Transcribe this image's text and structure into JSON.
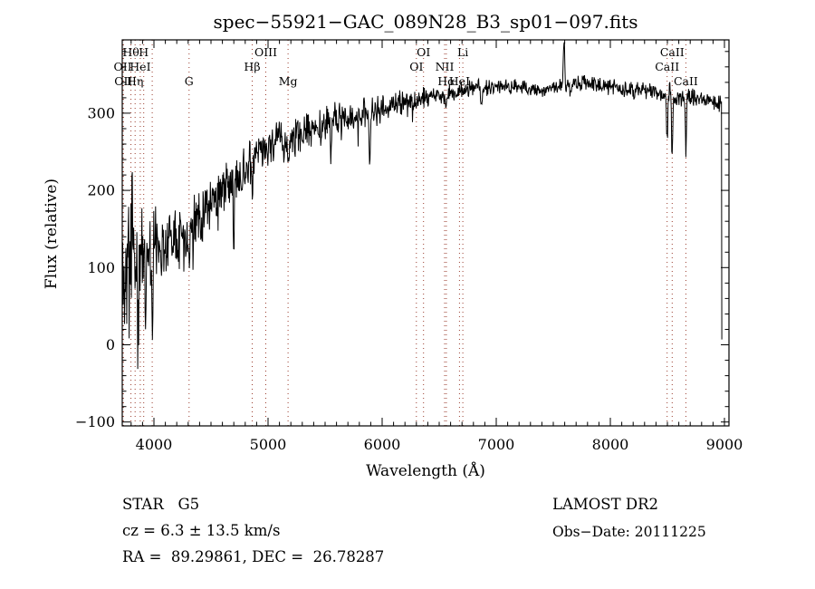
{
  "title": "spec−55921−GAC_089N28_B3_sp01−097.fits",
  "footer": {
    "class_label": "STAR   G5",
    "cz": "cz = 6.3 ± 13.5 km/s",
    "radec": "RA =  89.29861, DEC =  26.78287",
    "survey": "LAMOST DR2",
    "obs_date": "Obs−Date: 20111225"
  },
  "chart_data": {
    "type": "line",
    "title": "spec−55921−GAC_089N28_B3_sp01−097.fits",
    "xlabel": "Wavelength (Å)",
    "ylabel": "Flux (relative)",
    "xlim": [
      3722,
      9040
    ],
    "ylim": [
      -105,
      395
    ],
    "xticks": [
      4000,
      5000,
      6000,
      7000,
      8000,
      9000
    ],
    "yticks": [
      -100,
      0,
      100,
      200,
      300
    ],
    "x_minor_step": 100,
    "y_minor_step": 20,
    "grid": false,
    "marker_color": "#9a3b2c",
    "trace_color": "#000000",
    "spectral_lines": [
      {
        "wavelength": 3727,
        "label": "OII",
        "row": 2
      },
      {
        "wavelength": 3732,
        "label": "OII",
        "row": 3
      },
      {
        "wavelength": 3798,
        "label": "Hθ",
        "row": 1
      },
      {
        "wavelength": 3835,
        "label": "Hη",
        "row": 3
      },
      {
        "wavelength": 3880,
        "label": "HeI",
        "row": 2
      },
      {
        "wavelength": 3910,
        "label": "H",
        "row": 1
      },
      {
        "wavelength": 3985,
        "label": "",
        "row": 0
      },
      {
        "wavelength": 4308,
        "label": "G",
        "row": 3
      },
      {
        "wavelength": 4861,
        "label": "Hβ",
        "row": 2
      },
      {
        "wavelength": 4980,
        "label": "OIII",
        "row": 1
      },
      {
        "wavelength": 5175,
        "label": "Mg",
        "row": 3
      },
      {
        "wavelength": 6300,
        "label": "OI",
        "row": 2
      },
      {
        "wavelength": 6363,
        "label": "OI",
        "row": 1
      },
      {
        "wavelength": 6548,
        "label": "NII",
        "row": 2
      },
      {
        "wavelength": 6563,
        "label": "Hα",
        "row": 3
      },
      {
        "wavelength": 6678,
        "label": "HeI",
        "row": 3
      },
      {
        "wavelength": 6707,
        "label": "Li",
        "row": 1
      },
      {
        "wavelength": 8498,
        "label": "CaII",
        "row": 2
      },
      {
        "wavelength": 8542,
        "label": "CaII",
        "row": 1
      },
      {
        "wavelength": 8662,
        "label": "CaII",
        "row": 3
      }
    ],
    "continuum": [
      [
        3722,
        88
      ],
      [
        3760,
        100
      ],
      [
        3800,
        112
      ],
      [
        3860,
        120
      ],
      [
        3920,
        122
      ],
      [
        4000,
        128
      ],
      [
        4100,
        139
      ],
      [
        4200,
        148
      ],
      [
        4300,
        148
      ],
      [
        4400,
        168
      ],
      [
        4500,
        185
      ],
      [
        4600,
        200
      ],
      [
        4700,
        213
      ],
      [
        4800,
        232
      ],
      [
        4900,
        246
      ],
      [
        5000,
        258
      ],
      [
        5100,
        264
      ],
      [
        5200,
        268
      ],
      [
        5300,
        274
      ],
      [
        5400,
        280
      ],
      [
        5500,
        286
      ],
      [
        5600,
        291
      ],
      [
        5700,
        294
      ],
      [
        5800,
        297
      ],
      [
        5900,
        299
      ],
      [
        6000,
        306
      ],
      [
        6100,
        310
      ],
      [
        6200,
        314
      ],
      [
        6300,
        317
      ],
      [
        6400,
        320
      ],
      [
        6500,
        322
      ],
      [
        6600,
        326
      ],
      [
        6700,
        330
      ],
      [
        6800,
        332
      ],
      [
        7000,
        335
      ],
      [
        7200,
        334
      ],
      [
        7400,
        331
      ],
      [
        7600,
        336
      ],
      [
        7800,
        339
      ],
      [
        8000,
        334
      ],
      [
        8200,
        329
      ],
      [
        8400,
        329
      ],
      [
        8500,
        323
      ],
      [
        8600,
        318
      ],
      [
        8700,
        320
      ],
      [
        8800,
        317
      ],
      [
        8900,
        314
      ],
      [
        9040,
        310
      ]
    ],
    "noise_amplitude": [
      [
        3722,
        78
      ],
      [
        3780,
        88
      ],
      [
        3840,
        72
      ],
      [
        3900,
        58
      ],
      [
        3960,
        50
      ],
      [
        4000,
        44
      ],
      [
        4100,
        40
      ],
      [
        4300,
        34
      ],
      [
        4500,
        31
      ],
      [
        4800,
        27
      ],
      [
        5000,
        25
      ],
      [
        5300,
        23
      ],
      [
        5600,
        21
      ],
      [
        5900,
        19
      ],
      [
        6200,
        15
      ],
      [
        6500,
        12
      ],
      [
        6800,
        10
      ],
      [
        7100,
        9
      ],
      [
        7400,
        10
      ],
      [
        7700,
        10
      ],
      [
        8000,
        9
      ],
      [
        8300,
        10
      ],
      [
        8600,
        11
      ],
      [
        9040,
        10
      ]
    ],
    "features": [
      {
        "center": 3810,
        "width": 5,
        "depth": 120
      },
      {
        "center": 3860,
        "width": 5,
        "depth": -125
      },
      {
        "center": 3925,
        "width": 4,
        "depth": -105
      },
      {
        "center": 3985,
        "width": 4,
        "depth": -130
      },
      {
        "center": 4101,
        "width": 7,
        "depth": -28
      },
      {
        "center": 4304,
        "width": 8,
        "depth": -25
      },
      {
        "center": 4340,
        "width": 6,
        "depth": -25
      },
      {
        "center": 4700,
        "width": 5,
        "depth": -85
      },
      {
        "center": 4861,
        "width": 7,
        "depth": -38
      },
      {
        "center": 5175,
        "width": 10,
        "depth": -25
      },
      {
        "center": 5550,
        "width": 5,
        "depth": -42
      },
      {
        "center": 5893,
        "width": 7,
        "depth": -48
      },
      {
        "center": 6563,
        "width": 6,
        "depth": -18
      },
      {
        "center": 6870,
        "width": 7,
        "depth": -18
      },
      {
        "center": 7595,
        "width": 6,
        "depth": 62
      },
      {
        "center": 7650,
        "width": 5,
        "depth": -12
      },
      {
        "center": 8520,
        "width": 3,
        "depth": 20
      },
      {
        "center": 8498,
        "width": 5,
        "depth": -55
      },
      {
        "center": 8542,
        "width": 5,
        "depth": -78
      },
      {
        "center": 8662,
        "width": 5,
        "depth": -72
      }
    ],
    "left_flux_cap": [
      4250,
      256
    ],
    "spectrum_end": {
      "wavelength": 8975,
      "final_flux": 7
    },
    "sample_step": 4,
    "noise_seed": 11
  }
}
